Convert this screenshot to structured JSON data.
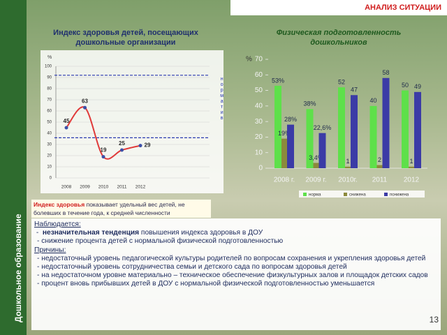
{
  "slide": {
    "header": "АНАЛИЗ СИТУАЦИИ",
    "side_label": "Дошкольное образование",
    "page_number": "13",
    "note": {
      "term": "Индекс здоровья",
      "text": "показывает удельный вес детей, не болевших в течение года, к средней численности"
    },
    "observations": {
      "heading": "Наблюдается:",
      "first": {
        "bold": "незначительная тенденция",
        "text": "повышения индекса здоровья в ДОУ"
      },
      "items": [
        "- снижение  процента детей с нормальной физической подготовленностью"
      ]
    },
    "reasons": {
      "heading": "Причины:",
      "items": [
        "- недостаточный уровень педагогической культуры родителей по вопросам сохранения и укрепления здоровья детей",
        "- недостаточный уровень сотрудничества семьи и детского сада по вопросам здоровья детей",
        "- на недостаточном уровне материально – техническое обеспечение физкультурных залов и площадок детских садов",
        "- процент вновь прибывших детей в ДОУ с нормальной физической подготовленностью уменьшается"
      ]
    }
  },
  "chart_data": [
    {
      "type": "line",
      "title": "Индекс здоровья детей, посещающих дошкольные организации",
      "ylabel": "%",
      "annotation": "норматив",
      "categories": [
        "2008",
        "2009",
        "2010",
        "2011",
        "2012"
      ],
      "values": [
        45,
        63,
        19,
        25,
        29
      ],
      "color": "#e03a3a",
      "reference_lines": [
        92,
        36
      ],
      "ylim": [
        0,
        100
      ],
      "yticks": [
        0,
        10,
        20,
        30,
        40,
        50,
        60,
        70,
        80,
        90,
        100
      ],
      "grid": true
    },
    {
      "type": "bar",
      "title": "Физическая подготовленность дошкольников",
      "ylabel": "%",
      "categories": [
        "2008 г.",
        "2009 г.",
        "2010г.",
        "2011",
        "2012"
      ],
      "series": [
        {
          "name": "норма",
          "color": "#5ee04a",
          "values": [
            53,
            38,
            52,
            40,
            50
          ],
          "value_labels": [
            "53%",
            "38%",
            "52",
            "40",
            "50"
          ]
        },
        {
          "name": "снижена",
          "color": "#8c8a3c",
          "values": [
            19,
            3.4,
            1,
            2,
            1
          ],
          "value_labels": [
            "19%",
            "3,4%",
            "1",
            "2",
            "1"
          ]
        },
        {
          "name": "понижена",
          "color": "#3b3ba6",
          "values": [
            28,
            22.6,
            47,
            58,
            49
          ],
          "value_labels": [
            "28%",
            "22,6%",
            "47",
            "58",
            "49"
          ]
        }
      ],
      "ylim": [
        0,
        70
      ],
      "yticks": [
        0,
        10,
        20,
        30,
        40,
        50,
        60,
        70
      ],
      "legend": "bottom"
    }
  ]
}
